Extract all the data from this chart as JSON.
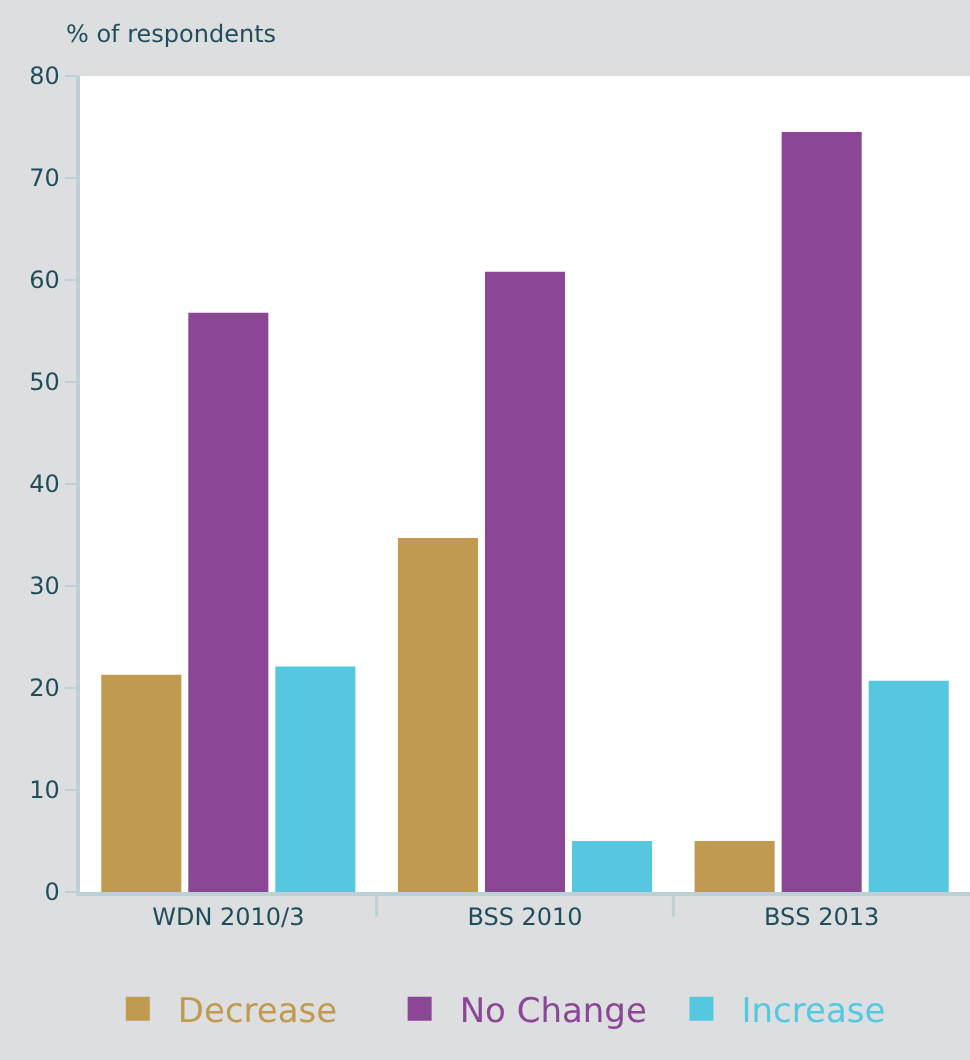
{
  "chart_data": {
    "type": "bar",
    "ylabel": "% of respondents",
    "categories": [
      "WDN 2010/3",
      "BSS 2010",
      "BSS 2013"
    ],
    "series": [
      {
        "name": "Decrease",
        "color": "#c09a50",
        "values": [
          21.3,
          34.7,
          5.0
        ]
      },
      {
        "name": "No Change",
        "color": "#8b4796",
        "values": [
          56.8,
          60.8,
          74.5
        ]
      },
      {
        "name": "Increase",
        "color": "#55c8e0",
        "values": [
          22.1,
          5.0,
          20.7
        ]
      }
    ],
    "ylim": [
      0,
      80
    ],
    "yticks": [
      0,
      10,
      20,
      30,
      40,
      50,
      60,
      70,
      80
    ],
    "grid": false,
    "legend": "bottom"
  }
}
